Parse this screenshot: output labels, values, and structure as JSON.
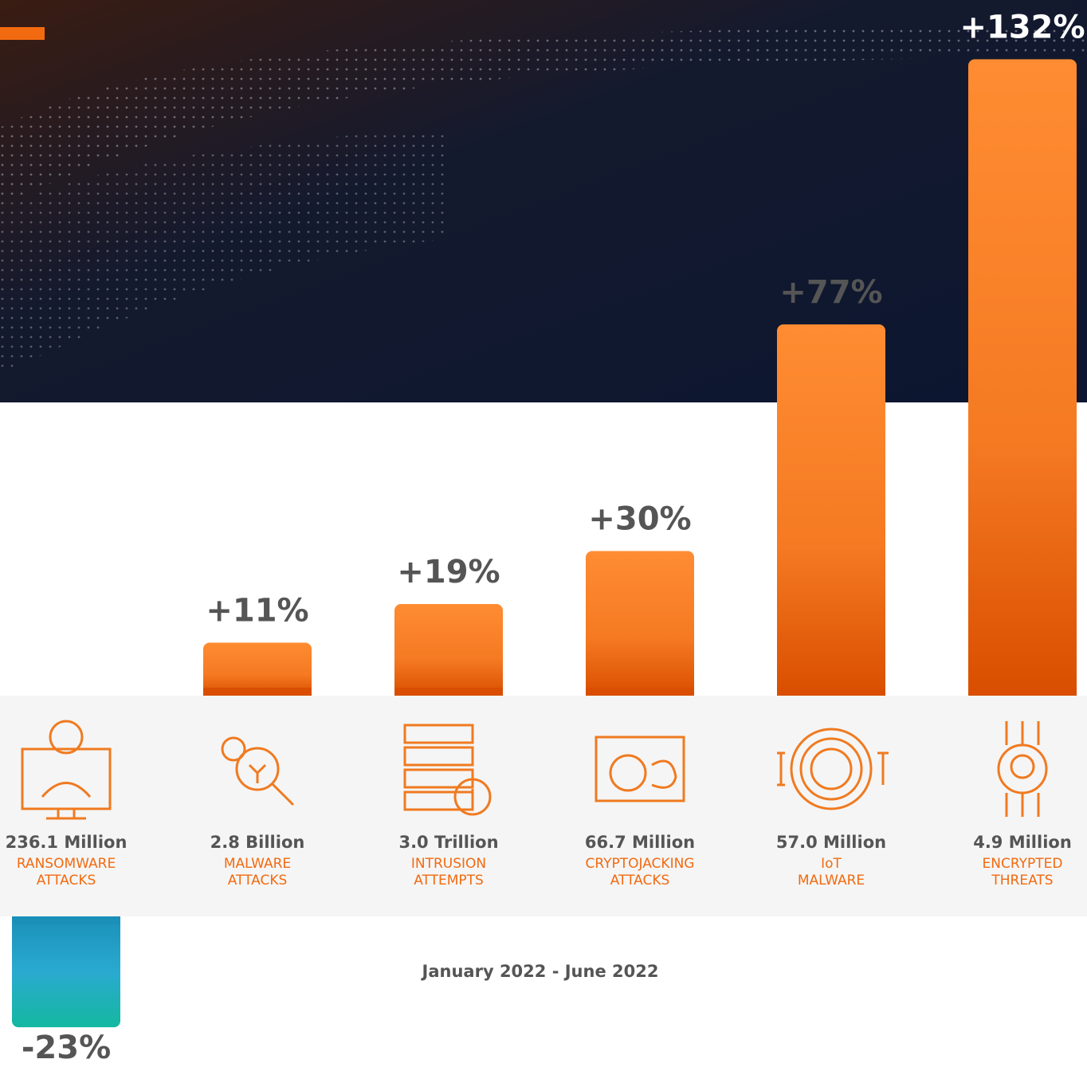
{
  "chart_data": {
    "type": "bar",
    "subtitle": "January 2022 - June 2022",
    "categories": [
      [
        "RANSOMWARE",
        "ATTACKS"
      ],
      [
        "MALWARE",
        "ATTACKS"
      ],
      [
        "INTRUSION",
        "ATTEMPTS"
      ],
      [
        "CRYPTOJACKING",
        "ATTACKS"
      ],
      [
        "IoT",
        "MALWARE"
      ],
      [
        "ENCRYPTED",
        "THREATS"
      ]
    ],
    "amounts": [
      "236.1 Million",
      "2.8 Billion",
      "3.0 Trillion",
      "66.7 Million",
      "57.0 Million",
      "4.9 Million"
    ],
    "values": [
      -23,
      11,
      19,
      30,
      77,
      132
    ],
    "value_labels": [
      "-23%",
      "+11%",
      "+19%",
      "+30%",
      "+77%",
      "+132%"
    ],
    "color": "#f07a20",
    "negative_color": "#1fa8c4"
  }
}
